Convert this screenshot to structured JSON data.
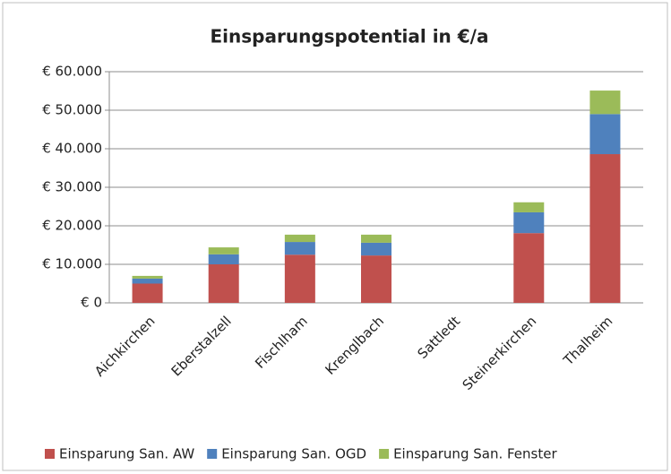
{
  "chart_data": {
    "type": "stacked_bar",
    "title": "Einsparungspotential in €/a",
    "categories": [
      "Aichkirchen",
      "Eberstalzell",
      "Fischlham",
      "Krenglbach",
      "Sattledt",
      "Steinerkirchen",
      "Thalheim"
    ],
    "series": [
      {
        "name": "Einsparung San. AW",
        "color": "#c0504d",
        "values": [
          5000,
          10000,
          12500,
          12300,
          0,
          18100,
          38600
        ]
      },
      {
        "name": "Einsparung San. OGD",
        "color": "#4f81bd",
        "values": [
          1300,
          2600,
          3300,
          3300,
          0,
          5400,
          10400
        ]
      },
      {
        "name": "Einsparung San. Fenster",
        "color": "#9bbb59",
        "values": [
          700,
          1800,
          1900,
          2100,
          0,
          2600,
          6100
        ]
      }
    ],
    "ylim": [
      0,
      60000
    ],
    "yticks": [
      {
        "value": 0,
        "label": "€ 0"
      },
      {
        "value": 10000,
        "label": "€ 10.000"
      },
      {
        "value": 20000,
        "label": "€ 20.000"
      },
      {
        "value": 30000,
        "label": "€ 30.000"
      },
      {
        "value": 40000,
        "label": "€ 40.000"
      },
      {
        "value": 50000,
        "label": "€ 50.000"
      },
      {
        "value": 60000,
        "label": "€ 60.000"
      }
    ],
    "grid": true,
    "legend": "bottom"
  }
}
